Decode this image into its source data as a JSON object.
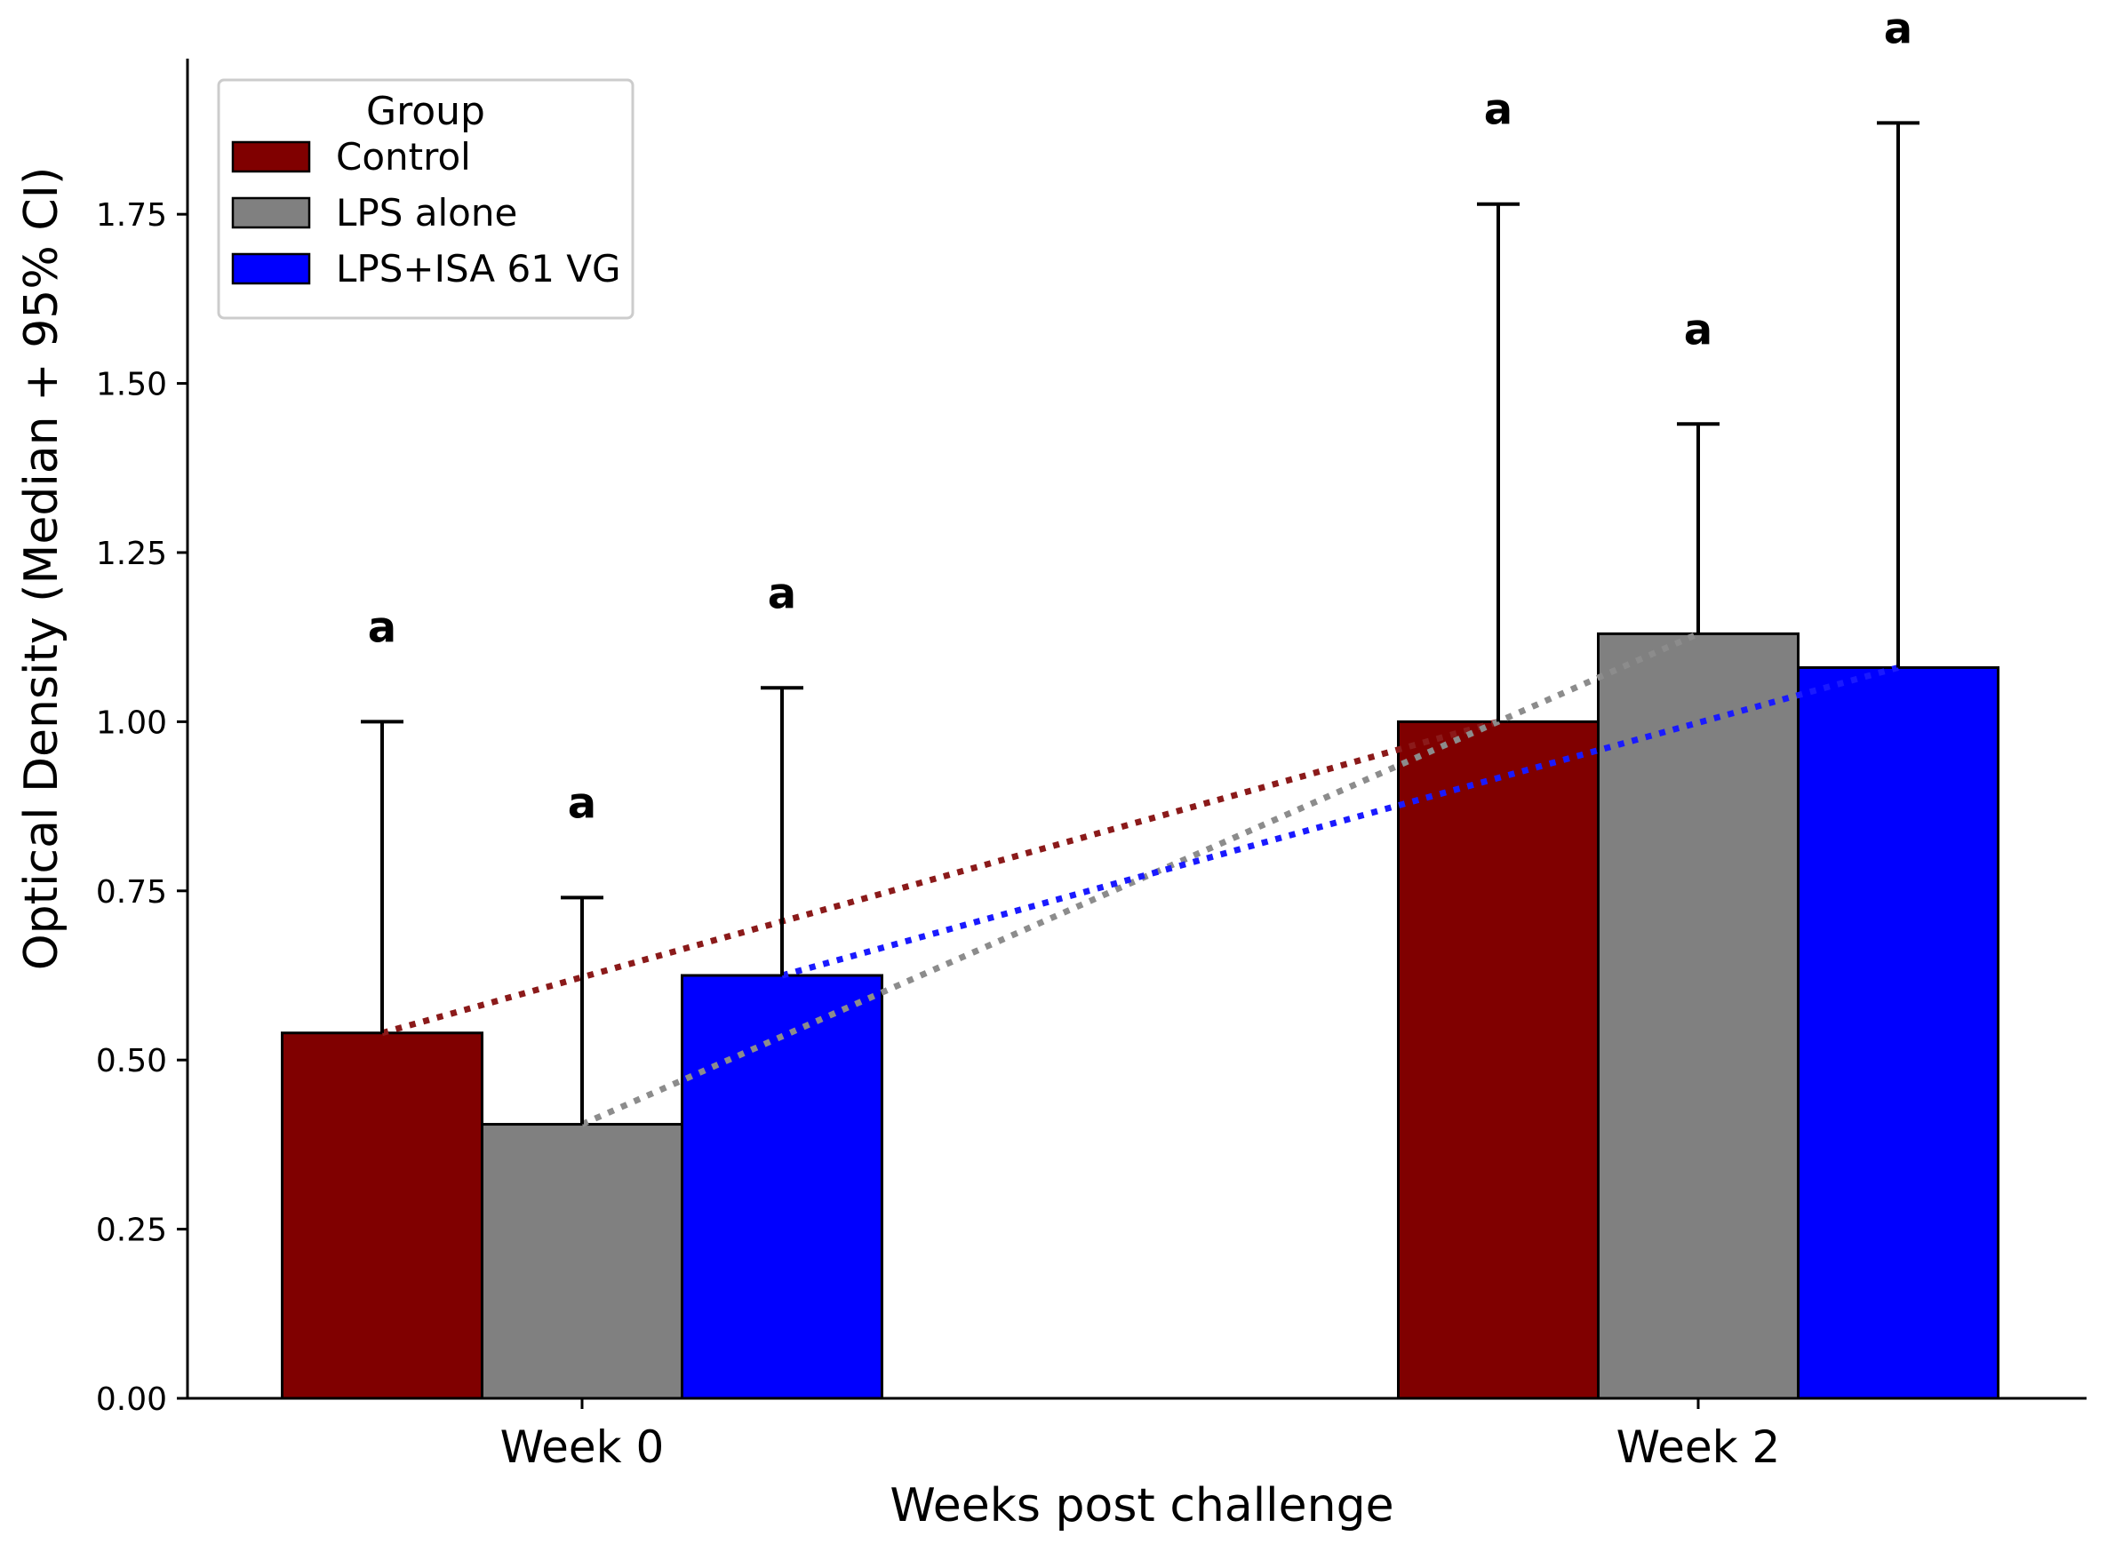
{
  "chart_data": {
    "type": "bar",
    "title": "",
    "xlabel": "Weeks post challenge",
    "ylabel": "Optical Density (Median + 95% CI)",
    "categories": [
      "Week 0",
      "Week 2"
    ],
    "ylim": [
      0,
      1.98
    ],
    "yticks": [
      "0.00",
      "0.25",
      "0.50",
      "0.75",
      "1.00",
      "1.25",
      "1.50",
      "1.75"
    ],
    "legend": {
      "title": "Group",
      "position": "top-left"
    },
    "series": [
      {
        "name": "Control",
        "color": "#800000",
        "line_color": "#8b1a1a",
        "values": [
          0.54,
          1.0
        ],
        "ci_upper": [
          1.0,
          1.765
        ],
        "significance": [
          "a",
          "a"
        ]
      },
      {
        "name": "LPS alone",
        "color": "#808080",
        "line_color": "#8c8c8c",
        "values": [
          0.405,
          1.13
        ],
        "ci_upper": [
          0.74,
          1.44
        ],
        "significance": [
          "a",
          "a"
        ]
      },
      {
        "name": "LPS+ISA 61 VG",
        "color": "#0000ff",
        "line_color": "#1a1aff",
        "values": [
          0.625,
          1.08
        ],
        "ci_upper": [
          1.05,
          1.885
        ],
        "significance": [
          "a",
          "a"
        ]
      }
    ],
    "trend_lines": "dotted lines connecting each group's Week 0 and Week 2 medians"
  }
}
